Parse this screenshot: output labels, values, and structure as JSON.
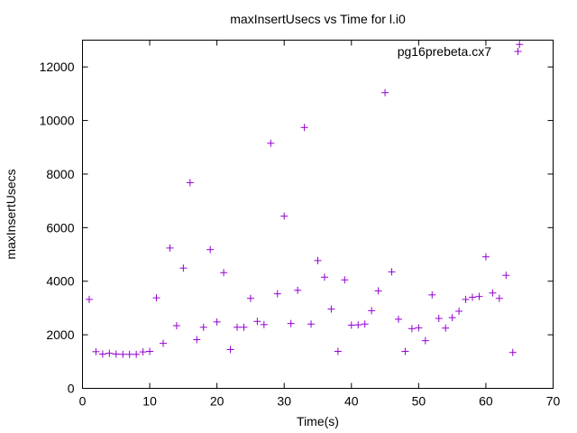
{
  "chart_data": {
    "type": "scatter",
    "title": "maxInsertUsecs vs Time for l.i0",
    "xlabel": "Time(s)",
    "ylabel": "maxInsertUsecs",
    "xlim": [
      0,
      70
    ],
    "ylim": [
      0,
      13000
    ],
    "xticks": [
      0,
      10,
      20,
      30,
      40,
      50,
      60,
      70
    ],
    "yticks": [
      0,
      2000,
      4000,
      6000,
      8000,
      10000,
      12000
    ],
    "grid": false,
    "legend": "top-right",
    "marker": "plus",
    "series": [
      {
        "name": "pg16prebeta.cx7",
        "color": "#9400d3",
        "x": [
          1,
          2,
          3,
          4,
          5,
          6,
          7,
          8,
          9,
          10,
          11,
          12,
          13,
          14,
          15,
          16,
          17,
          18,
          19,
          20,
          21,
          22,
          23,
          24,
          25,
          26,
          27,
          28,
          29,
          30,
          31,
          32,
          33,
          34,
          35,
          36,
          37,
          38,
          39,
          40,
          41,
          42,
          43,
          44,
          45,
          46,
          47,
          48,
          49,
          50,
          51,
          52,
          53,
          54,
          55,
          56,
          57,
          58,
          59,
          60,
          61,
          62,
          63,
          64,
          65
        ],
        "y": [
          3320,
          1370,
          1280,
          1310,
          1280,
          1270,
          1270,
          1270,
          1360,
          1380,
          3380,
          1680,
          5240,
          2340,
          4490,
          7680,
          1820,
          2280,
          5180,
          2480,
          4320,
          1450,
          2280,
          2280,
          3360,
          2500,
          2380,
          9150,
          3530,
          6430,
          2420,
          3660,
          9740,
          2400,
          4770,
          4150,
          2960,
          1380,
          4050,
          2360,
          2370,
          2400,
          2900,
          3640,
          11040,
          4350,
          2580,
          1380,
          2230,
          2260,
          1780,
          3490,
          2610,
          2250,
          2640,
          2880,
          3320,
          3400,
          3430,
          4910,
          3560,
          3360,
          4220,
          1340,
          12840
        ]
      }
    ]
  }
}
